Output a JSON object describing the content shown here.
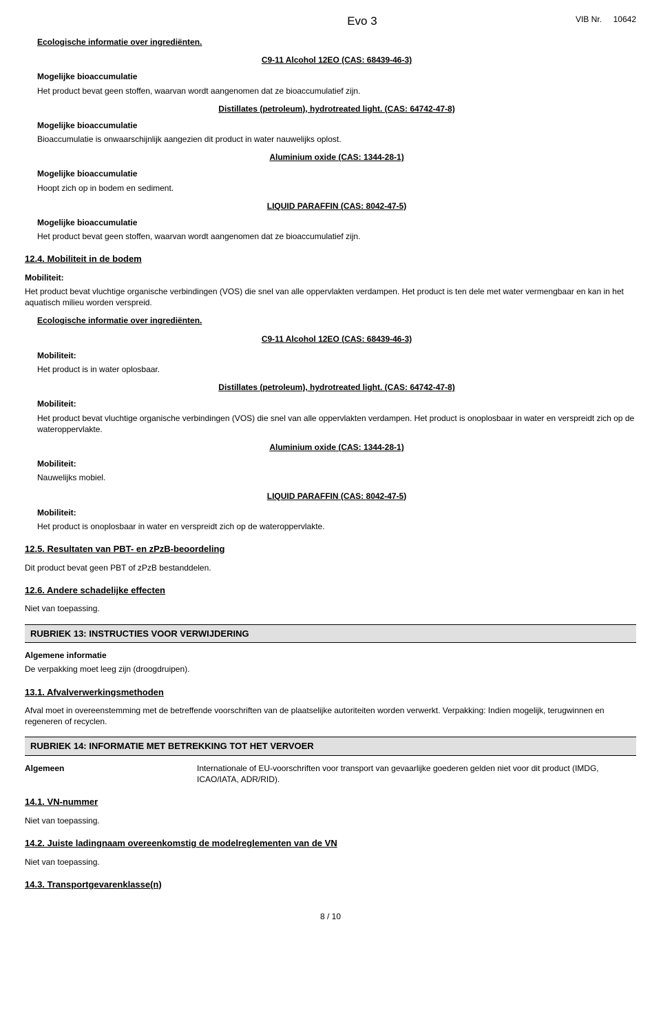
{
  "header": {
    "title": "Evo 3",
    "vib_label": "VIB Nr.",
    "vib_number": "10642"
  },
  "eco_info_heading": "Ecologische informatie over ingrediënten.",
  "bioaccum": {
    "label": "Mogelijke bioaccumulatie",
    "ing1_heading": "C9-11 Alcohol 12EO (CAS: 68439-46-3)",
    "ing1_text": "Het product bevat geen stoffen,  waarvan wordt aangenomen dat ze bioaccumulatief zijn.",
    "ing2_heading": "Distillates (petroleum), hydrotreated light. (CAS: 64742-47-8)",
    "ing2_text": "Bioaccumulatie is onwaarschijnlijk aangezien dit product in water nauwelijks oplost.",
    "ing3_heading": "Aluminium oxide (CAS: 1344-28-1)",
    "ing3_text": "Hoopt zich op in bodem en sediment.",
    "ing4_heading": "LIQUID PARAFFIN (CAS: 8042-47-5)",
    "ing4_text": "Het product bevat geen stoffen,  waarvan wordt aangenomen dat ze bioaccumulatief zijn."
  },
  "s124": {
    "heading": "12.4. Mobiliteit in de bodem",
    "mob_label": "Mobiliteit:",
    "mob_text": "Het product bevat vluchtige organische verbindingen (VOS) die snel van alle oppervlakten verdampen. Het product is ten dele met water vermengbaar en kan in het aquatisch milieu worden verspreid.",
    "eco_heading": "Ecologische informatie over ingrediënten.",
    "ing1_heading": "C9-11 Alcohol 12EO (CAS: 68439-46-3)",
    "ing1_text": "Het product is in water oplosbaar.",
    "ing2_heading": "Distillates (petroleum), hydrotreated light. (CAS: 64742-47-8)",
    "ing2_text": "Het product bevat vluchtige organische verbindingen (VOS) die snel van alle oppervlakten verdampen. Het product is onoplosbaar in water en verspreidt zich op de wateroppervlakte.",
    "ing3_heading": "Aluminium oxide (CAS: 1344-28-1)",
    "ing3_text": "Nauwelijks mobiel.",
    "ing4_heading": "LIQUID PARAFFIN (CAS: 8042-47-5)",
    "ing4_text": "Het product is onoplosbaar in water en verspreidt zich op de wateroppervlakte."
  },
  "s125": {
    "heading": "12.5. Resultaten van PBT- en zPzB-beoordeling",
    "text": "Dit product bevat geen PBT of zPzB bestanddelen."
  },
  "s126": {
    "heading": "12.6. Andere schadelijke effecten",
    "text": "Niet van toepassing."
  },
  "rub13": {
    "heading": "RUBRIEK 13: INSTRUCTIES VOOR VERWIJDERING",
    "general_label": "Algemene informatie",
    "general_text": "De verpakking moet leeg zijn (droogdruipen).",
    "s131_heading": "13.1. Afvalverwerkingsmethoden",
    "s131_text": "Afval moet in overeenstemming met de betreffende voorschriften van de plaatselijke autoriteiten worden verwerkt. Verpakking:  Indien mogelijk,  terugwinnen en regeneren of recyclen."
  },
  "rub14": {
    "heading": "RUBRIEK 14: INFORMATIE MET BETREKKING TOT HET VERVOER",
    "algemeen_label": "Algemeen",
    "algemeen_text": "Internationale of EU-voorschriften voor transport van gevaarlijke goederen gelden niet voor dit product (IMDG,  ICAO/IATA,  ADR/RID).",
    "s141_heading": "14.1. VN-nummer",
    "s141_text": "Niet van toepassing.",
    "s142_heading": "14.2. Juiste ladingnaam overeenkomstig de modelreglementen van de VN",
    "s142_text": "Niet van toepassing.",
    "s143_heading": "14.3. Transportgevarenklasse(n)"
  },
  "footer": {
    "page": "8 /  10"
  }
}
